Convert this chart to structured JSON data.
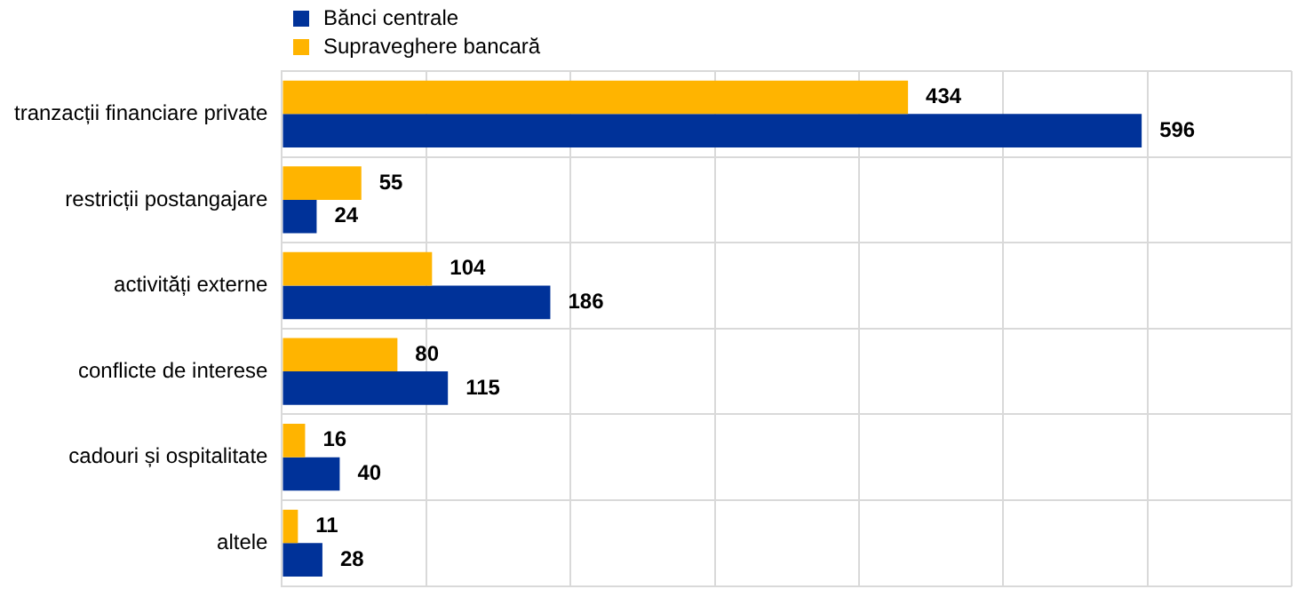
{
  "chart_data": {
    "type": "bar",
    "orientation": "horizontal",
    "categories": [
      "tranzacții financiare private",
      "restricții postangajare",
      "activități externe",
      "conflicte de interese",
      "cadouri și ospitalitate",
      "altele"
    ],
    "series": [
      {
        "name": "Bănci centrale",
        "color": "#003299",
        "values": [
          596,
          24,
          186,
          115,
          40,
          28
        ]
      },
      {
        "name": "Supraveghere bancară",
        "color": "#ffb400",
        "values": [
          434,
          55,
          104,
          80,
          16,
          11
        ]
      }
    ],
    "xlim": [
      0,
      700
    ],
    "xticks": [
      {
        "value": 0,
        "label": null
      },
      {
        "value": 100,
        "label": null
      },
      {
        "value": 200,
        "label": null
      },
      {
        "value": 300,
        "label": null
      },
      {
        "value": 400,
        "label": null
      },
      {
        "value": 500,
        "label": null
      },
      {
        "value": 600,
        "label": null
      },
      {
        "value": 700,
        "label": null
      }
    ],
    "tick_labels": "y",
    "grid": true,
    "legend": "top left",
    "data_labels": true
  }
}
